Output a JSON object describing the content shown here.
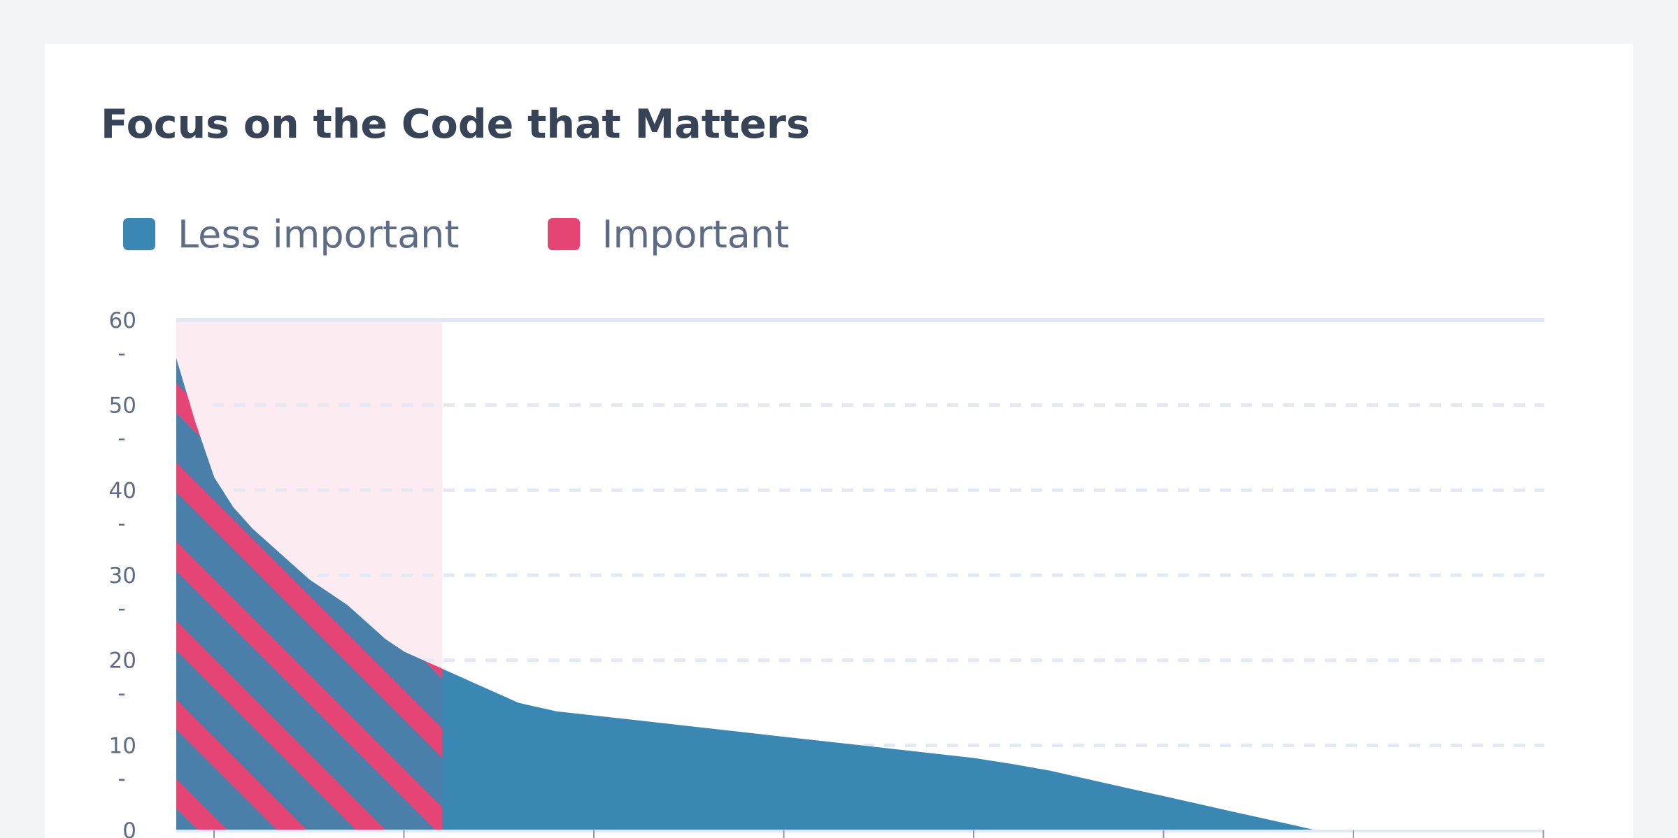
{
  "chart_data": {
    "type": "area",
    "title": "Focus on the Code that Matters",
    "xlabel": "",
    "ylabel": "",
    "ylim": [
      0,
      60
    ],
    "yticks": [
      0,
      10,
      20,
      30,
      40,
      50,
      60
    ],
    "grid": true,
    "legend_position": "top-left",
    "series": [
      {
        "name": "Less important",
        "color": "#3a87b3",
        "points": [
          [
            0,
            55.5
          ],
          [
            0.5,
            48
          ],
          [
            1,
            41.5
          ],
          [
            1.5,
            38
          ],
          [
            2,
            35.5
          ],
          [
            2.5,
            33.5
          ],
          [
            3,
            31.5
          ],
          [
            3.5,
            29.5
          ],
          [
            4,
            28
          ],
          [
            4.5,
            26.5
          ],
          [
            5,
            24.5
          ],
          [
            5.5,
            22.5
          ],
          [
            6,
            21
          ],
          [
            6.5,
            20
          ],
          [
            7,
            19
          ],
          [
            7.5,
            18
          ],
          [
            8,
            17
          ],
          [
            8.5,
            16
          ],
          [
            9,
            15
          ],
          [
            10,
            14
          ],
          [
            11,
            13.5
          ],
          [
            12,
            13
          ],
          [
            13,
            12.5
          ],
          [
            14,
            12
          ],
          [
            15,
            11.5
          ],
          [
            16,
            11
          ],
          [
            17,
            10.5
          ],
          [
            18,
            10
          ],
          [
            19,
            9.5
          ],
          [
            20,
            9
          ],
          [
            21,
            8.5
          ],
          [
            22,
            7.8
          ],
          [
            23,
            7
          ],
          [
            23.5,
            6.5
          ],
          [
            24,
            6
          ],
          [
            25,
            5
          ],
          [
            26,
            4
          ],
          [
            27,
            3
          ],
          [
            28,
            2
          ],
          [
            29,
            1
          ],
          [
            30,
            0
          ]
        ]
      },
      {
        "name": "Important",
        "color": "#e54574",
        "highlight_x_range": [
          0,
          7
        ]
      }
    ]
  }
}
